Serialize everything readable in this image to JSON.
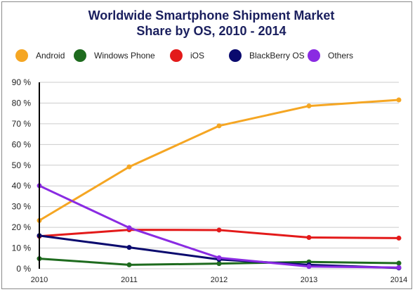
{
  "chart_data": {
    "type": "line",
    "title_line1": "Worldwide Smartphone Shipment Market",
    "title_line2": "Share by OS, 2010 - 2014",
    "x": [
      "2010",
      "2011",
      "2012",
      "2013",
      "2014"
    ],
    "ylim": [
      0,
      90
    ],
    "yticks": [
      0,
      10,
      20,
      30,
      40,
      50,
      60,
      70,
      80,
      90
    ],
    "ytick_labels": [
      "0 %",
      "10 %",
      "20 %",
      "30 %",
      "40 %",
      "50 %",
      "60 %",
      "70 %",
      "80 %",
      "90 %"
    ],
    "grid": true,
    "legend_position": "top",
    "series": [
      {
        "name": "Android",
        "color": "#f5a623",
        "values": [
          23.3,
          49.2,
          69.0,
          78.6,
          81.5
        ]
      },
      {
        "name": "Windows Phone",
        "color": "#1e6b1e",
        "values": [
          4.9,
          1.9,
          2.5,
          3.3,
          2.7
        ]
      },
      {
        "name": "iOS",
        "color": "#e31a1a",
        "values": [
          15.7,
          18.8,
          18.7,
          15.1,
          14.8
        ]
      },
      {
        "name": "BlackBerry OS",
        "color": "#0a0a6e",
        "values": [
          16.0,
          10.3,
          4.5,
          1.9,
          0.4
        ]
      },
      {
        "name": "Others",
        "color": "#8a2be2",
        "values": [
          40.1,
          19.8,
          5.3,
          1.1,
          0.6
        ]
      }
    ]
  }
}
